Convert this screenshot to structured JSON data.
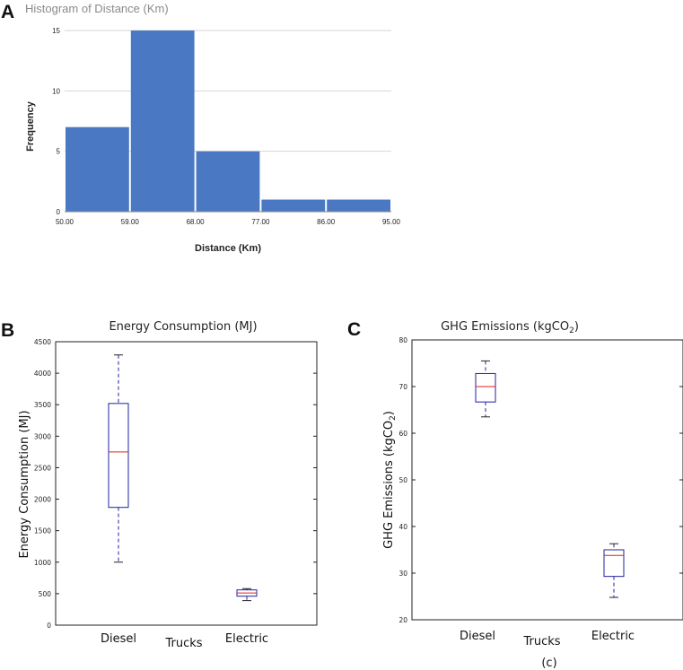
{
  "panels": {
    "a": "A",
    "b": "B",
    "c": "C",
    "caption": "(c)"
  },
  "chart_data": [
    {
      "id": "hist",
      "type": "bar",
      "title": "Histogram of Distance (Km)",
      "xlabel": "Distance (Km)",
      "ylabel": "Frequency",
      "bin_edges": [
        50,
        59,
        68,
        77,
        86,
        95
      ],
      "x_tick_labels": [
        "50.00",
        "59.00",
        "68.00",
        "77.00",
        "86.00",
        "95.00"
      ],
      "values": [
        7,
        15,
        5,
        1,
        1
      ],
      "y_ticks": [
        0,
        5,
        10,
        15
      ],
      "ylim": [
        0,
        15
      ],
      "xlim": [
        50,
        95
      ],
      "grid": true,
      "bar_color": "#4a78c2"
    },
    {
      "id": "energy",
      "type": "box",
      "title": "Energy Consumption (MJ)",
      "ylabel": "Energy Consumption (MJ)",
      "xlabel": "Trucks",
      "categories": [
        "Diesel",
        "Electric"
      ],
      "boxes": [
        {
          "name": "Diesel",
          "whisker_low": 1000,
          "q1": 1870,
          "median": 2750,
          "q3": 3520,
          "whisker_high": 4290
        },
        {
          "name": "Electric",
          "whisker_low": 390,
          "q1": 460,
          "median": 510,
          "q3": 560,
          "whisker_high": 580
        }
      ],
      "ylim": [
        0,
        4500
      ],
      "y_ticks": [
        0,
        500,
        1000,
        1500,
        2000,
        2500,
        3000,
        3500,
        4000,
        4500
      ],
      "box_color": "#2020a0",
      "median_color": "#e02020"
    },
    {
      "id": "ghg",
      "type": "box",
      "title_prefix": "GHG Emissions (kgCO",
      "title_sub": "2",
      "title_suffix": ")",
      "ylabel_prefix": "GHG Emissions (kgCO",
      "ylabel_sub": "2",
      "ylabel_suffix": ")",
      "xlabel": "Trucks",
      "categories": [
        "Diesel",
        "Electric"
      ],
      "boxes": [
        {
          "name": "Diesel",
          "whisker_low": 63.5,
          "q1": 66.7,
          "median": 70.0,
          "q3": 72.8,
          "whisker_high": 75.5
        },
        {
          "name": "Electric",
          "whisker_low": 24.8,
          "q1": 29.3,
          "median": 33.8,
          "q3": 35.0,
          "whisker_high": 36.3
        }
      ],
      "ylim": [
        20,
        80
      ],
      "y_ticks": [
        20,
        30,
        40,
        50,
        60,
        70,
        80
      ],
      "box_color": "#2020a0",
      "median_color": "#e02020"
    }
  ]
}
